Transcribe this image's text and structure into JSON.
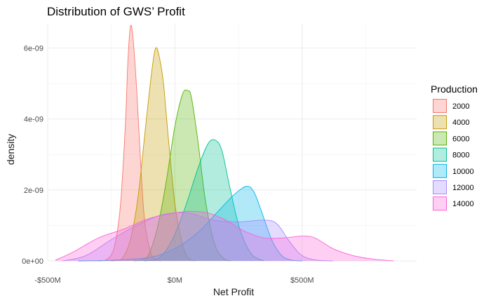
{
  "chart_data": {
    "type": "area",
    "title": "Distribution of GWS’ Profit",
    "xlabel": "Net Profit",
    "ylabel": "density",
    "x_unit": "USD",
    "xlim": [
      -500000000,
      950000000
    ],
    "ylim": [
      0,
      6.7e-09
    ],
    "x_ticks": [
      -500000000,
      0,
      500000000
    ],
    "x_tick_labels": [
      "-$500M",
      "$0M",
      "$500M"
    ],
    "y_ticks": [
      0,
      2e-09,
      4e-09,
      6e-09
    ],
    "y_tick_labels": [
      "0e+00",
      "2e-09",
      "4e-09",
      "6e-09"
    ],
    "grid": true,
    "legend": {
      "title": "Production",
      "position": "right"
    },
    "series": [
      {
        "name": "2000",
        "color": "#F8766D",
        "points": [
          [
            -300000000,
            0
          ],
          [
            -270000000,
            3e-11
          ],
          [
            -240000000,
            3.5e-10
          ],
          [
            -215000000,
            1.5e-09
          ],
          [
            -195000000,
            3.8e-09
          ],
          [
            -185000000,
            5.6e-09
          ],
          [
            -175000000,
            6.6e-09
          ],
          [
            -165000000,
            6.3e-09
          ],
          [
            -150000000,
            4.8e-09
          ],
          [
            -135000000,
            2.8e-09
          ],
          [
            -120000000,
            1.2e-09
          ],
          [
            -100000000,
            3.5e-10
          ],
          [
            -80000000,
            6e-11
          ],
          [
            -55000000,
            0
          ]
        ]
      },
      {
        "name": "4000",
        "color": "#C49A00",
        "points": [
          [
            -250000000,
            0
          ],
          [
            -210000000,
            5e-11
          ],
          [
            -175000000,
            6e-10
          ],
          [
            -145000000,
            1.8e-09
          ],
          [
            -115000000,
            3.8e-09
          ],
          [
            -90000000,
            5.4e-09
          ],
          [
            -75000000,
            6e-09
          ],
          [
            -60000000,
            5.7e-09
          ],
          [
            -45000000,
            5e-09
          ],
          [
            -25000000,
            3.4e-09
          ],
          [
            0,
            1.6e-09
          ],
          [
            25000000,
            6e-10
          ],
          [
            50000000,
            1e-10
          ],
          [
            80000000,
            0
          ]
        ]
      },
      {
        "name": "6000",
        "color": "#53B400",
        "points": [
          [
            -160000000,
            0
          ],
          [
            -110000000,
            1e-10
          ],
          [
            -70000000,
            9e-10
          ],
          [
            -35000000,
            2.2e-09
          ],
          [
            0,
            3.8e-09
          ],
          [
            30000000,
            4.7e-09
          ],
          [
            50000000,
            4.8e-09
          ],
          [
            65000000,
            4.6e-09
          ],
          [
            90000000,
            3.4e-09
          ],
          [
            120000000,
            1.7e-09
          ],
          [
            155000000,
            5e-10
          ],
          [
            190000000,
            8e-11
          ],
          [
            220000000,
            0
          ]
        ]
      },
      {
        "name": "8000",
        "color": "#00C094",
        "points": [
          [
            -120000000,
            0
          ],
          [
            -60000000,
            1e-10
          ],
          [
            -10000000,
            6e-10
          ],
          [
            40000000,
            1.5e-09
          ],
          [
            90000000,
            2.6e-09
          ],
          [
            130000000,
            3.3e-09
          ],
          [
            160000000,
            3.4e-09
          ],
          [
            185000000,
            3.1e-09
          ],
          [
            215000000,
            2.1e-09
          ],
          [
            255000000,
            9e-10
          ],
          [
            300000000,
            2e-10
          ],
          [
            350000000,
            0
          ]
        ]
      },
      {
        "name": "10000",
        "color": "#00B6EB",
        "points": [
          [
            -380000000,
            0
          ],
          [
            -250000000,
            2e-11
          ],
          [
            -100000000,
            1e-10
          ],
          [
            0,
            3.5e-10
          ],
          [
            90000000,
            8e-10
          ],
          [
            170000000,
            1.4e-09
          ],
          [
            230000000,
            1.85e-09
          ],
          [
            280000000,
            2.1e-09
          ],
          [
            310000000,
            1.95e-09
          ],
          [
            340000000,
            1.4e-09
          ],
          [
            380000000,
            6e-10
          ],
          [
            420000000,
            1.5e-10
          ],
          [
            460000000,
            2e-11
          ],
          [
            500000000,
            0
          ]
        ]
      },
      {
        "name": "12000",
        "color": "#A58AFF",
        "points": [
          [
            -440000000,
            0
          ],
          [
            -350000000,
            1.5e-10
          ],
          [
            -250000000,
            6e-10
          ],
          [
            -150000000,
            1e-09
          ],
          [
            -50000000,
            1.3e-09
          ],
          [
            50000000,
            1.35e-09
          ],
          [
            150000000,
            1.15e-09
          ],
          [
            250000000,
            1.1e-09
          ],
          [
            350000000,
            1.15e-09
          ],
          [
            400000000,
            1.05e-09
          ],
          [
            450000000,
            5.5e-10
          ],
          [
            500000000,
            1.5e-10
          ],
          [
            560000000,
            2e-11
          ],
          [
            620000000,
            0
          ]
        ]
      },
      {
        "name": "14000",
        "color": "#FB61D7",
        "points": [
          [
            -470000000,
            2e-11
          ],
          [
            -400000000,
            2.5e-10
          ],
          [
            -300000000,
            6.5e-10
          ],
          [
            -200000000,
            9e-10
          ],
          [
            -100000000,
            1.2e-09
          ],
          [
            0,
            1.35e-09
          ],
          [
            60000000,
            1.4e-09
          ],
          [
            130000000,
            1.35e-09
          ],
          [
            200000000,
            1.15e-09
          ],
          [
            270000000,
            8.5e-10
          ],
          [
            350000000,
            6.5e-10
          ],
          [
            430000000,
            6.5e-10
          ],
          [
            500000000,
            7e-10
          ],
          [
            550000000,
            6.5e-10
          ],
          [
            620000000,
            3.5e-10
          ],
          [
            700000000,
            1.5e-10
          ],
          [
            780000000,
            5e-11
          ],
          [
            860000000,
            0
          ]
        ]
      }
    ]
  }
}
